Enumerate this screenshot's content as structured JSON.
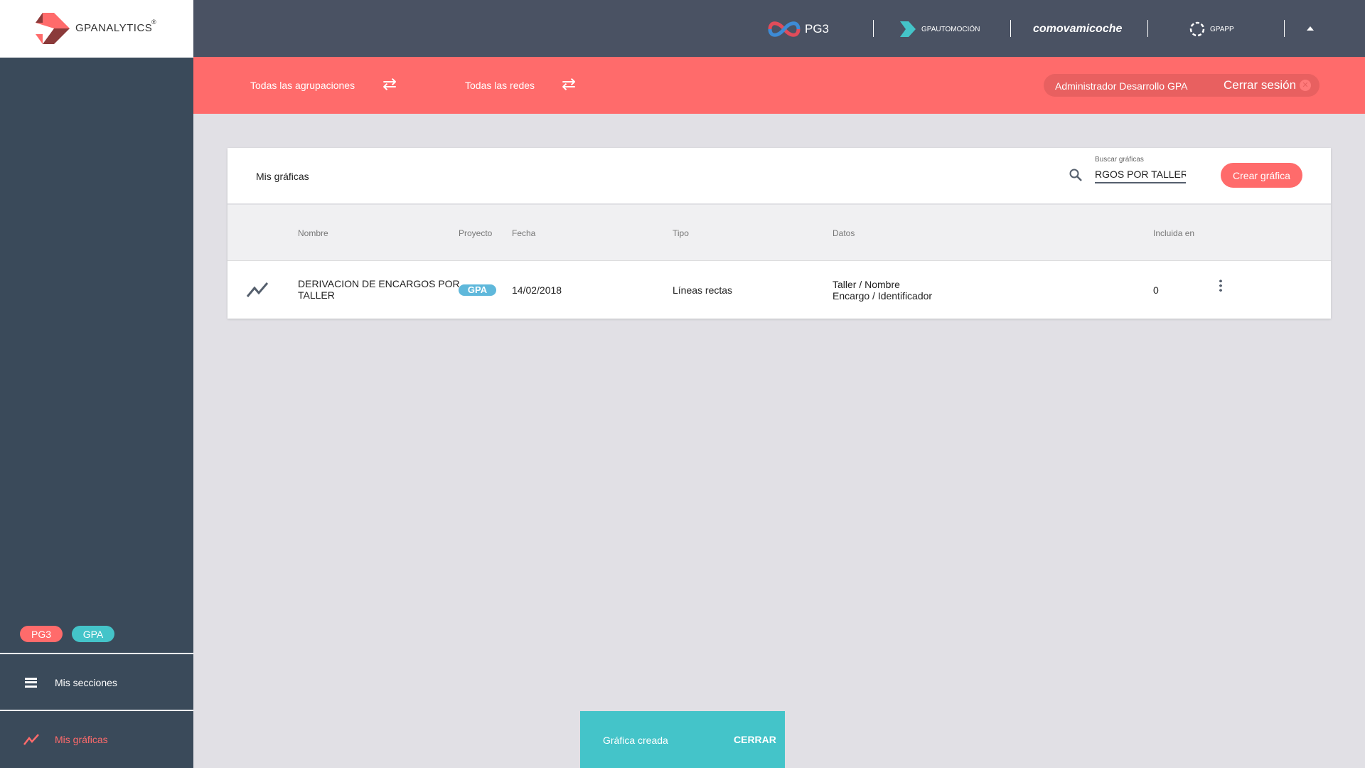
{
  "app": {
    "logo_text": "GPANALYTICS",
    "colors": {
      "coral": "#ff6b6b",
      "teal": "#44c4c9",
      "sidebar": "#3a4a5a",
      "topbar": "#4a5263"
    }
  },
  "topbar": {
    "brands": [
      {
        "name": "PG3"
      },
      {
        "name": "GPAUTOMOCIÓN"
      },
      {
        "name": "comovamicoche"
      },
      {
        "name": "GPAPP"
      }
    ],
    "caret_icon": "caret-up-icon"
  },
  "filters": {
    "agrupaciones": "Todas las agrupaciones",
    "redes": "Todas las redes",
    "swap_icon": "swap-icon"
  },
  "user": {
    "name": "Administrador Desarrollo GPA",
    "logout": "Cerrar sesión"
  },
  "card": {
    "title": "Mis gráficas",
    "search": {
      "label": "Buscar gráficas",
      "value": "RGOS POR TALLER"
    },
    "create_button": "Crear gráfica"
  },
  "table": {
    "headers": [
      "Nombre",
      "Proyecto",
      "Fecha",
      "Tipo",
      "Datos",
      "Incluida en"
    ],
    "rows": [
      {
        "icon": "line-chart-icon",
        "nombre": "DERIVACION DE ENCARGOS POR TALLER",
        "proyecto": "GPA",
        "fecha": "14/02/2018",
        "tipo": "Líneas rectas",
        "datos": [
          "Taller / Nombre",
          "Encargo / Identificador"
        ],
        "incluida": "0"
      }
    ]
  },
  "sidebar": {
    "chips": [
      "PG3",
      "GPA"
    ],
    "items": [
      {
        "label": "Mis secciones",
        "icon": "menu-icon"
      },
      {
        "label": "Mis gráficas",
        "icon": "line-chart-icon",
        "active": true
      }
    ]
  },
  "snackbar": {
    "message": "Gráfica creada",
    "action": "CERRAR"
  }
}
